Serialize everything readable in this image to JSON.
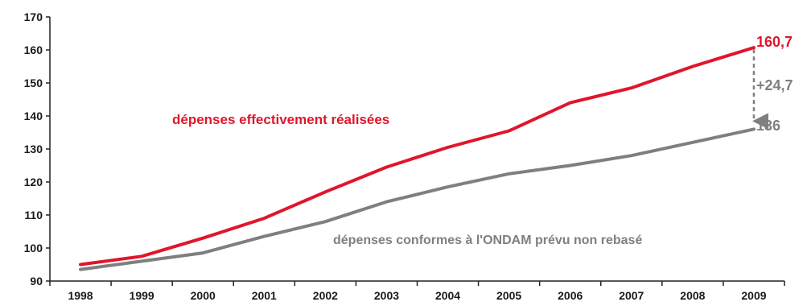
{
  "chart_data": {
    "type": "line",
    "title": "",
    "xlabel": "",
    "ylabel": "",
    "x": [
      "1998",
      "1999",
      "2000",
      "2001",
      "2002",
      "2003",
      "2004",
      "2005",
      "2006",
      "2007",
      "2008",
      "2009"
    ],
    "ylim": [
      90,
      170
    ],
    "yticks": [
      90,
      100,
      110,
      120,
      130,
      140,
      150,
      160,
      170
    ],
    "grid": false,
    "series": [
      {
        "name": "dépenses effectivement réalisées",
        "color": "#e0162b",
        "values": [
          95,
          97.5,
          103,
          109,
          117,
          124.5,
          130.5,
          135.5,
          144,
          148.5,
          155,
          160.7
        ]
      },
      {
        "name": "dépenses conformes à l'ONDAM prévu non rebasé",
        "color": "#7f7f7f",
        "values": [
          93.5,
          96,
          98.5,
          103.5,
          108,
          114,
          118.5,
          122.5,
          125,
          128,
          132,
          136
        ]
      }
    ],
    "annotations": {
      "end_red": "160,7",
      "end_grey": "136",
      "difference": "+24,7"
    }
  }
}
